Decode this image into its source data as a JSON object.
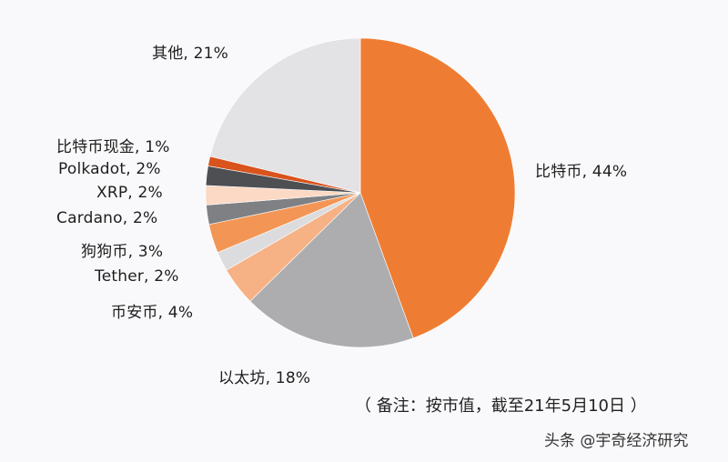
{
  "chart_data": {
    "type": "pie",
    "title": "",
    "start_angle_deg": 0,
    "direction": "clockwise",
    "slices": [
      {
        "label": "比特币",
        "value": 44,
        "color": "#ee7d33"
      },
      {
        "label": "以太坊",
        "value": 18,
        "color": "#adadaf"
      },
      {
        "label": "币安币",
        "value": 4,
        "color": "#f6b184"
      },
      {
        "label": "Tether",
        "value": 2,
        "color": "#dcdcde"
      },
      {
        "label": "狗狗币",
        "value": 3,
        "color": "#f39655"
      },
      {
        "label": "Cardano",
        "value": 2,
        "color": "#7f8084"
      },
      {
        "label": "XRP",
        "value": 2,
        "color": "#fbd9c4"
      },
      {
        "label": "Polkadot",
        "value": 2,
        "color": "#4d4f53"
      },
      {
        "label": "比特币现金",
        "value": 1,
        "color": "#d9531c"
      },
      {
        "label": "其他",
        "value": 21,
        "color": "#e3e3e5"
      }
    ],
    "annotations": [
      "（ 备注：按市值，截至21年5月10日 ）"
    ]
  },
  "labels": {
    "bitcoin": "比特币, 44%",
    "ethereum": "以太坊, 18%",
    "bnb": "币安币, 4%",
    "tether": "Tether, 2%",
    "dogecoin": "狗狗币, 3%",
    "cardano": "Cardano, 2%",
    "xrp": "XRP, 2%",
    "polkadot": "Polkadot, 2%",
    "bitcoin_cash": "比特币现金, 1%",
    "other": "其他, 21%"
  },
  "note": "（ 备注：按市值，截至21年5月10日 ）",
  "watermark": "头条 @宇奇经济研究"
}
